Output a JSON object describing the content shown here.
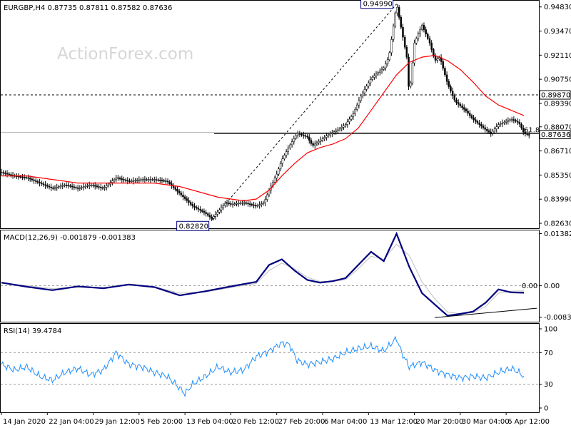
{
  "chart_data": [
    {
      "type": "candlestick",
      "name": "price",
      "header": "EURGBP,H4  0.87735 0.87811 0.87582 0.87636",
      "watermark": "ActionForex.com",
      "y_ticks": [
        "0.94830",
        "0.93470",
        "0.92110",
        "0.90750",
        "0.89390",
        "0.88070",
        "0.86710",
        "0.85350",
        "0.83990",
        "0.82630"
      ],
      "ylim": [
        0.8243,
        0.951
      ],
      "current_price": "0.87636",
      "support_level": {
        "value": 0.8768,
        "label": "61.8"
      },
      "resistance_level": {
        "value": 0.8987,
        "label": "0.89870"
      },
      "low_point": {
        "label": "0.82820",
        "value": 0.8282,
        "x": 82.5
      },
      "high_point": {
        "label": "0.94990",
        "value": 0.9499,
        "x": 155
      },
      "moving_average_color": "#ff0000",
      "candle_color": "#000000",
      "price_path": [
        [
          0,
          0.855
        ],
        [
          5,
          0.853
        ],
        [
          10,
          0.852
        ],
        [
          15,
          0.849
        ],
        [
          20,
          0.846
        ],
        [
          25,
          0.848
        ],
        [
          30,
          0.846
        ],
        [
          35,
          0.848
        ],
        [
          40,
          0.846
        ],
        [
          45,
          0.852
        ],
        [
          50,
          0.85
        ],
        [
          55,
          0.851
        ],
        [
          60,
          0.851
        ],
        [
          65,
          0.85
        ],
        [
          70,
          0.843
        ],
        [
          75,
          0.836
        ],
        [
          80,
          0.832
        ],
        [
          82.5,
          0.829
        ],
        [
          85,
          0.833
        ],
        [
          88,
          0.838
        ],
        [
          90,
          0.837
        ],
        [
          95,
          0.838
        ],
        [
          100,
          0.836
        ],
        [
          103,
          0.838
        ],
        [
          105,
          0.845
        ],
        [
          108,
          0.854
        ],
        [
          110,
          0.862
        ],
        [
          113,
          0.87
        ],
        [
          116,
          0.877
        ],
        [
          120,
          0.875
        ],
        [
          122,
          0.87
        ],
        [
          125,
          0.873
        ],
        [
          128,
          0.876
        ],
        [
          132,
          0.879
        ],
        [
          135,
          0.882
        ],
        [
          138,
          0.888
        ],
        [
          141,
          0.898
        ],
        [
          145,
          0.908
        ],
        [
          150,
          0.914
        ],
        [
          152,
          0.92
        ],
        [
          155,
          0.9499
        ],
        [
          157,
          0.935
        ],
        [
          159,
          0.92
        ],
        [
          160,
          0.898
        ],
        [
          162,
          0.928
        ],
        [
          165,
          0.938
        ],
        [
          168,
          0.928
        ],
        [
          170,
          0.918
        ],
        [
          172,
          0.92
        ],
        [
          175,
          0.905
        ],
        [
          178,
          0.895
        ],
        [
          182,
          0.89
        ],
        [
          185,
          0.885
        ],
        [
          190,
          0.879
        ],
        [
          192,
          0.877
        ],
        [
          195,
          0.882
        ],
        [
          200,
          0.885
        ],
        [
          203,
          0.883
        ],
        [
          205,
          0.877
        ],
        [
          207,
          0.876
        ]
      ],
      "ma_path": [
        [
          0,
          0.853
        ],
        [
          10,
          0.853
        ],
        [
          20,
          0.851
        ],
        [
          30,
          0.849
        ],
        [
          40,
          0.849
        ],
        [
          50,
          0.849
        ],
        [
          60,
          0.849
        ],
        [
          70,
          0.847
        ],
        [
          75,
          0.845
        ],
        [
          80,
          0.843
        ],
        [
          85,
          0.841
        ],
        [
          90,
          0.84
        ],
        [
          95,
          0.839
        ],
        [
          100,
          0.84
        ],
        [
          105,
          0.845
        ],
        [
          110,
          0.853
        ],
        [
          115,
          0.86
        ],
        [
          120,
          0.866
        ],
        [
          125,
          0.869
        ],
        [
          130,
          0.871
        ],
        [
          135,
          0.874
        ],
        [
          140,
          0.88
        ],
        [
          145,
          0.89
        ],
        [
          150,
          0.9
        ],
        [
          155,
          0.91
        ],
        [
          160,
          0.917
        ],
        [
          165,
          0.92
        ],
        [
          170,
          0.921
        ],
        [
          175,
          0.918
        ],
        [
          180,
          0.913
        ],
        [
          185,
          0.906
        ],
        [
          190,
          0.898
        ],
        [
          195,
          0.893
        ],
        [
          200,
          0.89
        ],
        [
          205,
          0.887
        ]
      ]
    },
    {
      "type": "line",
      "name": "macd",
      "header": "MACD(12,26,9) -0.001879 -0.001383",
      "y_ticks": [
        "0.013821",
        "0.00",
        "-0.008397"
      ],
      "ylim": [
        -0.0094,
        0.0143
      ],
      "zero_label": "0.00",
      "macd_color": "#000080",
      "signal_color": "#c0c0c0",
      "macd_path": [
        [
          0,
          0.0008
        ],
        [
          10,
          -0.0003
        ],
        [
          20,
          -0.0012
        ],
        [
          30,
          -0.0002
        ],
        [
          40,
          -0.0007
        ],
        [
          50,
          0.0003
        ],
        [
          60,
          -0.0004
        ],
        [
          70,
          -0.0026
        ],
        [
          80,
          -0.0015
        ],
        [
          90,
          -0.0002
        ],
        [
          100,
          0.001
        ],
        [
          105,
          0.0055
        ],
        [
          110,
          0.007
        ],
        [
          115,
          0.004
        ],
        [
          120,
          0.0015
        ],
        [
          125,
          0.0008
        ],
        [
          130,
          0.0012
        ],
        [
          135,
          0.002
        ],
        [
          140,
          0.0055
        ],
        [
          145,
          0.009
        ],
        [
          150,
          0.0065
        ],
        [
          155,
          0.0138
        ],
        [
          160,
          0.005
        ],
        [
          165,
          -0.002
        ],
        [
          170,
          -0.005
        ],
        [
          175,
          -0.008
        ],
        [
          180,
          -0.0075
        ],
        [
          185,
          -0.0069
        ],
        [
          190,
          -0.0045
        ],
        [
          195,
          -0.001
        ],
        [
          200,
          -0.0018
        ],
        [
          205,
          -0.0019
        ]
      ],
      "signal_path": [
        [
          0,
          0.0006
        ],
        [
          10,
          0.0
        ],
        [
          20,
          -0.0008
        ],
        [
          30,
          -0.0004
        ],
        [
          40,
          -0.0005
        ],
        [
          50,
          0.0001
        ],
        [
          60,
          -0.0003
        ],
        [
          70,
          -0.002
        ],
        [
          80,
          -0.0017
        ],
        [
          90,
          -0.0005
        ],
        [
          100,
          0.0006
        ],
        [
          105,
          0.004
        ],
        [
          110,
          0.006
        ],
        [
          115,
          0.0045
        ],
        [
          120,
          0.0022
        ],
        [
          125,
          0.0011
        ],
        [
          130,
          0.0011
        ],
        [
          135,
          0.0016
        ],
        [
          140,
          0.0045
        ],
        [
          145,
          0.0078
        ],
        [
          150,
          0.007
        ],
        [
          155,
          0.011
        ],
        [
          160,
          0.008
        ],
        [
          165,
          0.001
        ],
        [
          170,
          -0.0035
        ],
        [
          175,
          -0.007
        ],
        [
          180,
          -0.0075
        ],
        [
          185,
          -0.0072
        ],
        [
          190,
          -0.0055
        ],
        [
          195,
          -0.002
        ],
        [
          200,
          -0.0015
        ],
        [
          205,
          -0.0014
        ]
      ],
      "trendline": [
        [
          170,
          -0.0085
        ],
        [
          210,
          -0.006
        ]
      ]
    },
    {
      "type": "line",
      "name": "rsi",
      "header": "RSI(14) 39.4784",
      "y_ticks": [
        "100",
        "70",
        "30",
        "0"
      ],
      "ylim": [
        0,
        100
      ],
      "rsi_color": "#1e90ff",
      "rsi_path": [
        [
          0,
          55
        ],
        [
          5,
          48
        ],
        [
          10,
          52
        ],
        [
          15,
          40
        ],
        [
          20,
          35
        ],
        [
          25,
          45
        ],
        [
          30,
          50
        ],
        [
          35,
          42
        ],
        [
          40,
          48
        ],
        [
          45,
          70
        ],
        [
          50,
          55
        ],
        [
          55,
          52
        ],
        [
          60,
          45
        ],
        [
          65,
          40
        ],
        [
          70,
          25
        ],
        [
          72,
          18
        ],
        [
          75,
          30
        ],
        [
          80,
          40
        ],
        [
          85,
          52
        ],
        [
          90,
          45
        ],
        [
          95,
          48
        ],
        [
          100,
          65
        ],
        [
          105,
          72
        ],
        [
          110,
          82
        ],
        [
          113,
          80
        ],
        [
          116,
          60
        ],
        [
          120,
          55
        ],
        [
          125,
          58
        ],
        [
          130,
          62
        ],
        [
          135,
          70
        ],
        [
          140,
          75
        ],
        [
          145,
          78
        ],
        [
          150,
          72
        ],
        [
          155,
          88
        ],
        [
          157,
          70
        ],
        [
          160,
          52
        ],
        [
          165,
          58
        ],
        [
          170,
          48
        ],
        [
          175,
          42
        ],
        [
          180,
          38
        ],
        [
          185,
          40
        ],
        [
          190,
          38
        ],
        [
          195,
          45
        ],
        [
          200,
          50
        ],
        [
          203,
          45
        ],
        [
          205,
          39.4784
        ]
      ]
    }
  ],
  "x_axis": {
    "labels": [
      "14 Jan 2020",
      "22 Jan 04:00",
      "29 Jan 12:00",
      "5 Feb 20:00",
      "13 Feb 04:00",
      "20 Feb 12:00",
      "27 Feb 20:00",
      "6 Mar 04:00",
      "13 Mar 12:00",
      "20 Mar 20:00",
      "30 Mar 04:00",
      "6 Apr 12:00"
    ],
    "positions": [
      0,
      18,
      36,
      54,
      72,
      90,
      108,
      126,
      144,
      162,
      180,
      198
    ],
    "range": [
      0,
      210
    ]
  }
}
